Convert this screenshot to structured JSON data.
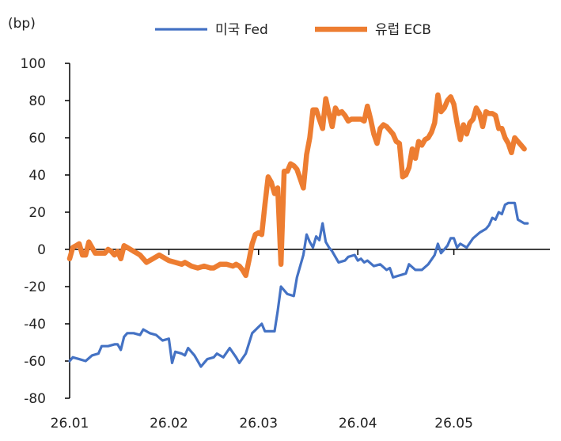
{
  "chart_data": {
    "type": "line",
    "unit_label": "(bp)",
    "ylim": [
      -80,
      100
    ],
    "yticks": [
      100,
      80,
      60,
      40,
      20,
      0,
      -20,
      -40,
      -60,
      -80
    ],
    "xlim": [
      0,
      150
    ],
    "xticks": [
      {
        "label": "26.01",
        "x": 0
      },
      {
        "label": "26.02",
        "x": 31
      },
      {
        "label": "26.03",
        "x": 59
      },
      {
        "label": "26.04",
        "x": 90
      },
      {
        "label": "26.05",
        "x": 120
      }
    ],
    "grid": false,
    "legend_position": "top",
    "series": [
      {
        "name": "미국 Fed",
        "color": "#4472C4",
        "points": [
          [
            0,
            -60
          ],
          [
            1,
            -58
          ],
          [
            3,
            -59
          ],
          [
            5,
            -60
          ],
          [
            7,
            -57
          ],
          [
            9,
            -56
          ],
          [
            10,
            -52
          ],
          [
            12,
            -52
          ],
          [
            14,
            -51
          ],
          [
            15,
            -51
          ],
          [
            16,
            -54
          ],
          [
            17,
            -47
          ],
          [
            18,
            -45
          ],
          [
            20,
            -45
          ],
          [
            22,
            -46
          ],
          [
            23,
            -43
          ],
          [
            25,
            -45
          ],
          [
            27,
            -46
          ],
          [
            29,
            -49
          ],
          [
            31,
            -48
          ],
          [
            32,
            -61
          ],
          [
            33,
            -55
          ],
          [
            35,
            -56
          ],
          [
            36,
            -57
          ],
          [
            37,
            -53
          ],
          [
            39,
            -57
          ],
          [
            40,
            -60
          ],
          [
            41,
            -63
          ],
          [
            43,
            -59
          ],
          [
            45,
            -58
          ],
          [
            46,
            -56
          ],
          [
            48,
            -58
          ],
          [
            50,
            -53
          ],
          [
            52,
            -58
          ],
          [
            53,
            -61
          ],
          [
            55,
            -56
          ],
          [
            57,
            -45
          ],
          [
            60,
            -40
          ],
          [
            61,
            -44
          ],
          [
            64,
            -44
          ],
          [
            65,
            -33
          ],
          [
            66,
            -20
          ],
          [
            68,
            -24
          ],
          [
            70,
            -25
          ],
          [
            71,
            -15
          ],
          [
            73,
            -3
          ],
          [
            74,
            8
          ],
          [
            75,
            4
          ],
          [
            76,
            1
          ],
          [
            77,
            7
          ],
          [
            78,
            5
          ],
          [
            79,
            14
          ],
          [
            80,
            4
          ],
          [
            81,
            1
          ],
          [
            82,
            -1
          ],
          [
            84,
            -7
          ],
          [
            86,
            -6
          ],
          [
            87,
            -4
          ],
          [
            89,
            -3
          ],
          [
            90,
            -6
          ],
          [
            91,
            -5
          ],
          [
            92,
            -7
          ],
          [
            93,
            -6
          ],
          [
            95,
            -9
          ],
          [
            97,
            -8
          ],
          [
            99,
            -11
          ],
          [
            100,
            -10
          ],
          [
            101,
            -15
          ],
          [
            103,
            -14
          ],
          [
            105,
            -13
          ],
          [
            106,
            -8
          ],
          [
            108,
            -11
          ],
          [
            110,
            -11
          ],
          [
            112,
            -8
          ],
          [
            114,
            -3
          ],
          [
            115,
            3
          ],
          [
            116,
            -2
          ],
          [
            118,
            2
          ],
          [
            119,
            6
          ],
          [
            120,
            6
          ],
          [
            121,
            1
          ],
          [
            122,
            3
          ],
          [
            124,
            1
          ],
          [
            126,
            6
          ],
          [
            128,
            9
          ],
          [
            129,
            10
          ],
          [
            130,
            11
          ],
          [
            131,
            13
          ],
          [
            132,
            17
          ],
          [
            133,
            16
          ],
          [
            134,
            20
          ],
          [
            135,
            19
          ],
          [
            136,
            24
          ],
          [
            137,
            25
          ],
          [
            138,
            25
          ],
          [
            139,
            25
          ],
          [
            140,
            16
          ],
          [
            142,
            14
          ],
          [
            143,
            14
          ]
        ]
      },
      {
        "name": "유럽 ECB",
        "color": "#ED7D31",
        "points": [
          [
            0,
            -5
          ],
          [
            1,
            1
          ],
          [
            2,
            2
          ],
          [
            3,
            3
          ],
          [
            4,
            -3
          ],
          [
            5,
            -3
          ],
          [
            6,
            4
          ],
          [
            7,
            1
          ],
          [
            8,
            -2
          ],
          [
            9,
            -2
          ],
          [
            10,
            -2
          ],
          [
            11,
            -2
          ],
          [
            12,
            0
          ],
          [
            13,
            -1
          ],
          [
            14,
            -3
          ],
          [
            15,
            -1
          ],
          [
            16,
            -5
          ],
          [
            17,
            2
          ],
          [
            18,
            1
          ],
          [
            19,
            0
          ],
          [
            20,
            -1
          ],
          [
            21,
            -2
          ],
          [
            22,
            -3
          ],
          [
            24,
            -7
          ],
          [
            26,
            -5
          ],
          [
            28,
            -3
          ],
          [
            29,
            -4
          ],
          [
            30,
            -5
          ],
          [
            31,
            -6
          ],
          [
            33,
            -7
          ],
          [
            35,
            -8
          ],
          [
            36,
            -7
          ],
          [
            38,
            -9
          ],
          [
            40,
            -10
          ],
          [
            42,
            -9
          ],
          [
            44,
            -10
          ],
          [
            45,
            -10
          ],
          [
            47,
            -8
          ],
          [
            49,
            -8
          ],
          [
            51,
            -9
          ],
          [
            52,
            -8
          ],
          [
            53,
            -9
          ],
          [
            54,
            -11
          ],
          [
            55,
            -14
          ],
          [
            56,
            -6
          ],
          [
            57,
            3
          ],
          [
            58,
            8
          ],
          [
            59,
            9
          ],
          [
            60,
            8
          ],
          [
            61,
            24
          ],
          [
            62,
            39
          ],
          [
            63,
            36
          ],
          [
            64,
            30
          ],
          [
            65,
            33
          ],
          [
            66,
            -8
          ],
          [
            67,
            42
          ],
          [
            68,
            42
          ],
          [
            69,
            46
          ],
          [
            70,
            45
          ],
          [
            71,
            43
          ],
          [
            72,
            38
          ],
          [
            73,
            33
          ],
          [
            74,
            51
          ],
          [
            75,
            60
          ],
          [
            76,
            75
          ],
          [
            77,
            75
          ],
          [
            78,
            70
          ],
          [
            79,
            65
          ],
          [
            80,
            81
          ],
          [
            81,
            73
          ],
          [
            82,
            66
          ],
          [
            83,
            76
          ],
          [
            84,
            73
          ],
          [
            85,
            74
          ],
          [
            86,
            72
          ],
          [
            87,
            69
          ],
          [
            88,
            70
          ],
          [
            89,
            70
          ],
          [
            90,
            70
          ],
          [
            91,
            70
          ],
          [
            92,
            69
          ],
          [
            93,
            77
          ],
          [
            94,
            70
          ],
          [
            95,
            62
          ],
          [
            96,
            57
          ],
          [
            97,
            65
          ],
          [
            98,
            67
          ],
          [
            99,
            66
          ],
          [
            100,
            64
          ],
          [
            101,
            62
          ],
          [
            102,
            58
          ],
          [
            103,
            57
          ],
          [
            104,
            39
          ],
          [
            105,
            40
          ],
          [
            106,
            44
          ],
          [
            107,
            54
          ],
          [
            108,
            49
          ],
          [
            109,
            58
          ],
          [
            110,
            56
          ],
          [
            111,
            59
          ],
          [
            112,
            60
          ],
          [
            113,
            63
          ],
          [
            114,
            68
          ],
          [
            115,
            83
          ],
          [
            116,
            74
          ],
          [
            117,
            76
          ],
          [
            118,
            80
          ],
          [
            119,
            82
          ],
          [
            120,
            78
          ],
          [
            121,
            68
          ],
          [
            122,
            59
          ],
          [
            123,
            67
          ],
          [
            124,
            62
          ],
          [
            125,
            68
          ],
          [
            126,
            70
          ],
          [
            127,
            76
          ],
          [
            128,
            73
          ],
          [
            129,
            66
          ],
          [
            130,
            74
          ],
          [
            131,
            73
          ],
          [
            132,
            73
          ],
          [
            133,
            72
          ],
          [
            134,
            65
          ],
          [
            135,
            65
          ],
          [
            136,
            60
          ],
          [
            137,
            57
          ],
          [
            138,
            52
          ],
          [
            139,
            60
          ],
          [
            140,
            58
          ],
          [
            141,
            56
          ],
          [
            142,
            54
          ]
        ]
      }
    ]
  }
}
